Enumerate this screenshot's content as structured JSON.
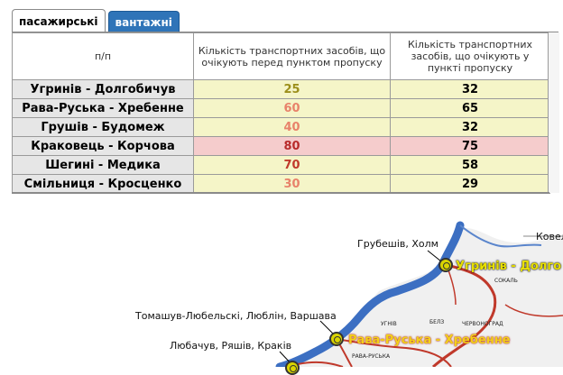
{
  "tabs": [
    {
      "label": "пасажирські",
      "active": true
    },
    {
      "label": "вантажні",
      "active": false
    }
  ],
  "table": {
    "headers": {
      "pp": "п/п",
      "waiting_before": "Кількість транспортних засобів, що очікують перед пунктом пропуску",
      "waiting_at": "Кількість транспортних засобів, що очікують у пункті пропуску"
    },
    "rows": [
      {
        "name": "Угринів - Долгобичув",
        "before": "25",
        "at": "32"
      },
      {
        "name": "Рава-Руська - Хребенне",
        "before": "60",
        "at": "65"
      },
      {
        "name": "Грушів - Будомеж",
        "before": "40",
        "at": "32"
      },
      {
        "name": "Краковець - Корчова",
        "before": "80",
        "at": "75"
      },
      {
        "name": "Шегині - Медика",
        "before": "70",
        "at": "58"
      },
      {
        "name": "Смільниця - Кросценко",
        "before": "30",
        "at": "29"
      }
    ]
  },
  "map": {
    "labels": {
      "hrubieszow": "Грубешів, Холм",
      "kovel": "Ковел",
      "tomaszow": "Томашув-Любельскі, Люблін, Варшава",
      "lubaczow": "Любачув, Ряшів, Краків"
    },
    "small_labels": {
      "sokal": "СОКАЛЬ",
      "uhniv": "УГНІВ",
      "belz": "БЕЛЗ",
      "chervonohrad": "ЧЕРВОНОГРАД",
      "rava": "РАВА-РУСЬКА"
    },
    "checkpoints": {
      "uhryniv": "Угринів - Долго",
      "rava": "Рава-Руська - Хребенне"
    },
    "colors": {
      "border": "#3c6fc2",
      "road": "#c0392b",
      "land": "#f2f2f2"
    }
  }
}
